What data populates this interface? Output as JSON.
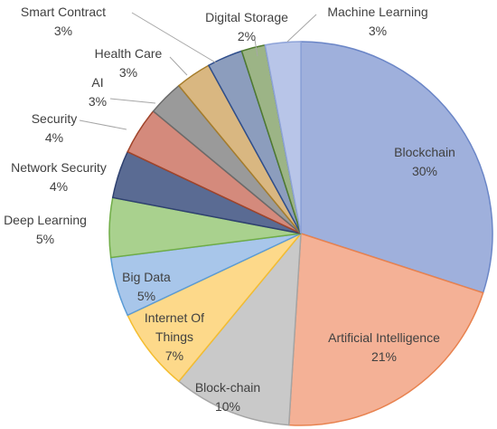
{
  "chart_data": {
    "type": "pie",
    "title": "",
    "slices": [
      {
        "label": "Blockchain",
        "value": 30,
        "value_label": "30%",
        "fill": "#9fb0dc",
        "stroke": "#6b86c7"
      },
      {
        "label": "Artificial Intelligence",
        "value": 21,
        "value_label": "21%",
        "fill": "#f4b196",
        "stroke": "#e8824f"
      },
      {
        "label": "Block-chain",
        "value": 10,
        "value_label": "10%",
        "fill": "#c9c9c9",
        "stroke": "#a5a5a5"
      },
      {
        "label": "Internet Of Things",
        "value": 7,
        "value_label": "7%",
        "fill": "#fdd98a",
        "stroke": "#f4bd30"
      },
      {
        "label": "Big Data",
        "value": 5,
        "value_label": "5%",
        "fill": "#a8c6ea",
        "stroke": "#5b9bd5"
      },
      {
        "label": "Deep Learning",
        "value": 5,
        "value_label": "5%",
        "fill": "#a9d18e",
        "stroke": "#70ad47"
      },
      {
        "label": "Network Security",
        "value": 4,
        "value_label": "4%",
        "fill": "#5a6b93",
        "stroke": "#2f4170"
      },
      {
        "label": "Security",
        "value": 4,
        "value_label": "4%",
        "fill": "#d48a7c",
        "stroke": "#a0442a"
      },
      {
        "label": "AI",
        "value": 3,
        "value_label": "3%",
        "fill": "#9a9a9a",
        "stroke": "#6b6b6b"
      },
      {
        "label": "Health Care",
        "value": 3,
        "value_label": "3%",
        "fill": "#d9b781",
        "stroke": "#a67d2b"
      },
      {
        "label": "Smart Contract",
        "value": 3,
        "value_label": "3%",
        "fill": "#8c9dbd",
        "stroke": "#2f4e8c"
      },
      {
        "label": "Digital Storage",
        "value": 2,
        "value_label": "2%",
        "fill": "#9cb486",
        "stroke": "#4f7a2f"
      },
      {
        "label": "Machine Learning",
        "value": 3,
        "value_label": "3%",
        "fill": "#b8c5e8",
        "stroke": "#8ea3d8"
      }
    ],
    "legend": "none"
  }
}
